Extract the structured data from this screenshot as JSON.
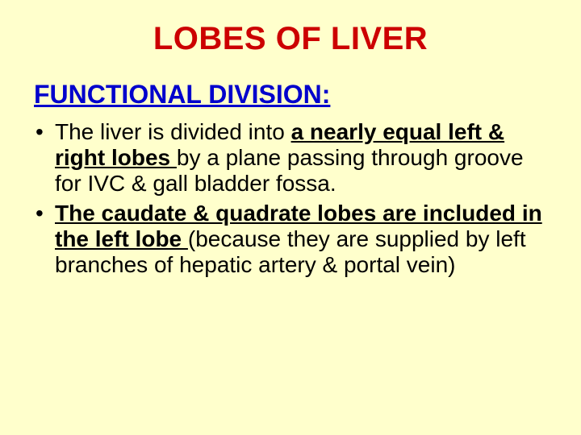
{
  "slide": {
    "background": "#ffffcc",
    "title": {
      "text": "LOBES OF LIVER",
      "color": "#cc0000",
      "fontsize": 40
    },
    "subheading": {
      "text": "FUNCTIONAL DIVISION:",
      "color": "#0000cc",
      "fontsize": 32
    },
    "body": {
      "color": "#000000",
      "fontsize": 28,
      "line_height": 1.15
    },
    "bullets": [
      {
        "p1": "The liver is divided into ",
        "emph1": "a nearly equal left & right lobes ",
        "p2": "by a plane passing through groove for IVC & gall bladder fossa."
      },
      {
        "emph1": "The caudate & quadrate lobes are included in the left lobe ",
        "p1": "(because they are supplied by left branches of hepatic artery & portal vein)"
      }
    ]
  }
}
